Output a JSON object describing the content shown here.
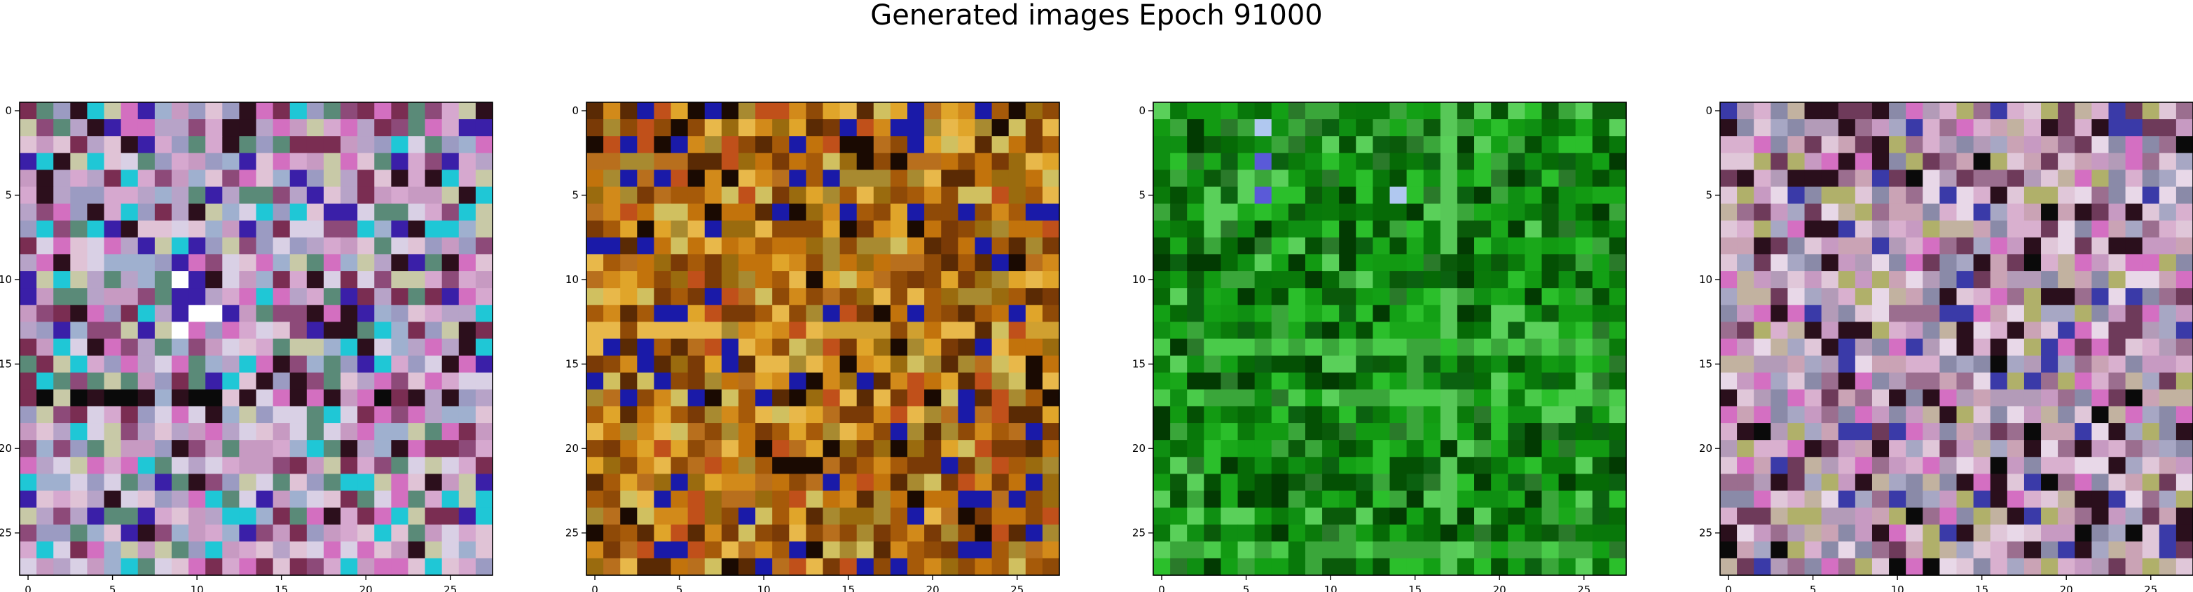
{
  "figure": {
    "title": "Generated images Epoch 91000"
  },
  "chart_data": [
    {
      "type": "heatmap",
      "title": "",
      "xlabel": "",
      "ylabel": "",
      "grid": false,
      "xlim": [
        -0.5,
        27.5
      ],
      "ylim": [
        27.5,
        -0.5
      ],
      "xticks": [
        0,
        5,
        10,
        15,
        20,
        25
      ],
      "yticks": [
        0,
        5,
        10,
        15,
        20,
        25
      ],
      "size": [
        28,
        28
      ],
      "palette": [
        "#c79ac2",
        "#d6a8cf",
        "#b7a3c8",
        "#9fb0cf",
        "#c8c9a7",
        "#d36fc0",
        "#8d4a79",
        "#9b9bc2",
        "#e0c3d6",
        "#7a2d52",
        "#2c0f1c",
        "#3a1fa8",
        "#1fc7d6",
        "#d9d0e5",
        "#5a8a78"
      ],
      "features": {
        "dark_band_row": 17,
        "bright_block": [
          11,
          11
        ]
      }
    },
    {
      "type": "heatmap",
      "title": "",
      "xlabel": "",
      "ylabel": "",
      "grid": false,
      "xlim": [
        -0.5,
        27.5
      ],
      "ylim": [
        27.5,
        -0.5
      ],
      "xticks": [
        0,
        5,
        10,
        15,
        20,
        25
      ],
      "yticks": [
        0,
        5,
        10,
        15,
        20,
        25
      ],
      "size": [
        28,
        28
      ],
      "palette": [
        "#c2730c",
        "#a65a09",
        "#8f4a07",
        "#d28a1a",
        "#b86f1d",
        "#9a6b0e",
        "#e0a52a",
        "#7a3a06",
        "#c0501a",
        "#e8b84a",
        "#5a2a04",
        "#1a0a02",
        "#1a1aa8",
        "#d0c060",
        "#a88a30"
      ],
      "features": {
        "bright_band_row": 13
      }
    },
    {
      "type": "heatmap",
      "title": "",
      "xlabel": "",
      "ylabel": "",
      "grid": false,
      "xlim": [
        -0.5,
        27.5
      ],
      "ylim": [
        27.5,
        -0.5
      ],
      "xticks": [
        0,
        5,
        10,
        15,
        20,
        25
      ],
      "yticks": [
        0,
        5,
        10,
        15,
        20,
        25
      ],
      "size": [
        28,
        28
      ],
      "palette": [
        "#0a7a0a",
        "#0f8f12",
        "#066a06",
        "#13a015",
        "#0b6110",
        "#1aa81a",
        "#0a5a0a",
        "#2bbf2b",
        "#08780a",
        "#3aa63a",
        "#045004",
        "#5ad05a",
        "#023a02",
        "#2a7a2a",
        "#129a12"
      ],
      "features": {
        "light_band_rows": [
          14,
          17,
          26
        ],
        "light_band_col": 17
      }
    },
    {
      "type": "heatmap",
      "title": "",
      "xlabel": "",
      "ylabel": "",
      "grid": false,
      "xlim": [
        -0.5,
        27.5
      ],
      "ylim": [
        27.5,
        -0.5
      ],
      "xticks": [
        0,
        5,
        10,
        15,
        20,
        25
      ],
      "yticks": [
        0,
        5,
        10,
        15,
        20,
        25
      ],
      "size": [
        28,
        28
      ],
      "palette": [
        "#c79ac2",
        "#d9b0cf",
        "#b39bb8",
        "#a7a7c4",
        "#caa3b5",
        "#9b6e8f",
        "#e0c7d9",
        "#8a8aa8",
        "#d46fc2",
        "#6e3a5a",
        "#2a0f1c",
        "#c2b2a0",
        "#3a3aa8",
        "#b0b06a",
        "#e8d8e8"
      ],
      "features": {
        "dark_spots": true
      }
    }
  ]
}
